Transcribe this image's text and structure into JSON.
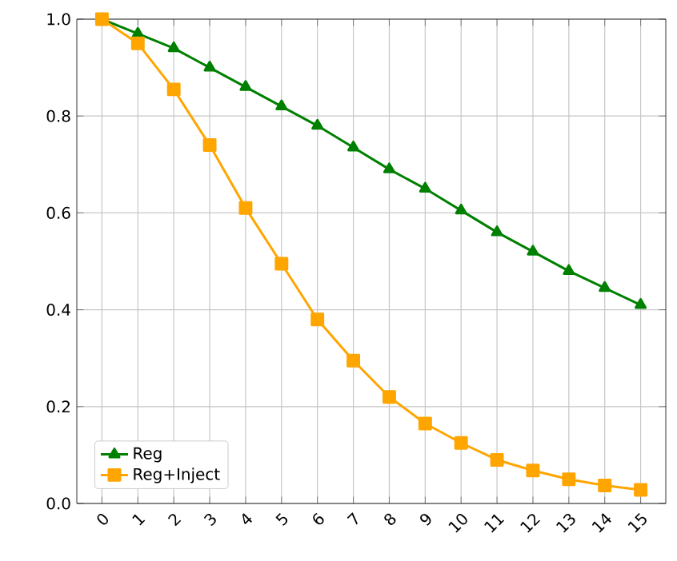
{
  "chart_data": {
    "type": "line",
    "x": [
      0,
      1,
      2,
      3,
      4,
      5,
      6,
      7,
      8,
      9,
      10,
      11,
      12,
      13,
      14,
      15
    ],
    "series": [
      {
        "name": "Reg",
        "color": "#008000",
        "marker": "triangle",
        "values": [
          1.0,
          0.97,
          0.94,
          0.9,
          0.86,
          0.82,
          0.78,
          0.735,
          0.69,
          0.65,
          0.605,
          0.56,
          0.52,
          0.48,
          0.445,
          0.41
        ]
      },
      {
        "name": "Reg+Inject",
        "color": "#ffa500",
        "marker": "square",
        "values": [
          1.0,
          0.95,
          0.855,
          0.74,
          0.61,
          0.495,
          0.38,
          0.295,
          0.22,
          0.165,
          0.125,
          0.09,
          0.068,
          0.05,
          0.037,
          0.028
        ]
      }
    ],
    "xlim": [
      -0.7,
      15.7
    ],
    "xticks": [
      0,
      1,
      2,
      3,
      4,
      5,
      6,
      7,
      8,
      9,
      10,
      11,
      12,
      13,
      14,
      15
    ],
    "ylim": [
      0,
      1.0
    ],
    "yticks": [
      {
        "value": 0,
        "label": "0.0"
      },
      {
        "value": 0.2,
        "label": "0.2"
      },
      {
        "value": 0.4,
        "label": "0.4"
      },
      {
        "value": 0.6,
        "label": "0.6"
      },
      {
        "value": 0.8,
        "label": "0.8"
      },
      {
        "value": 1.0,
        "label": "1.0"
      }
    ],
    "grid": true,
    "legend": "bottom left",
    "line_style": "solid"
  }
}
